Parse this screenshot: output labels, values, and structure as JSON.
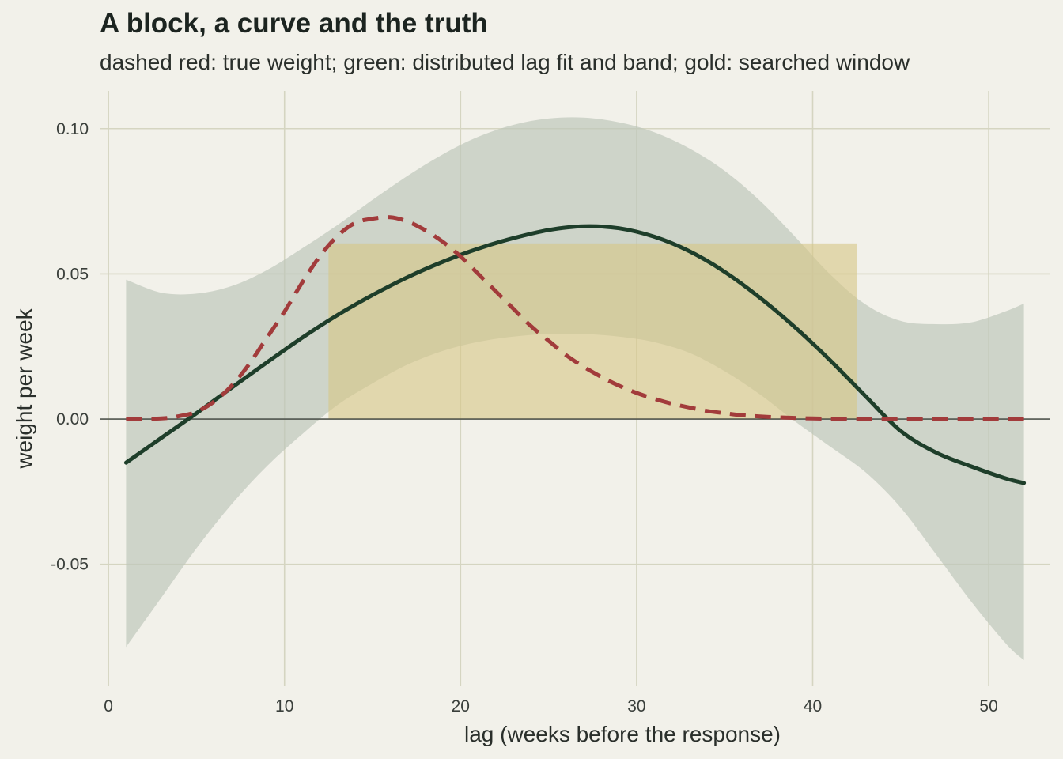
{
  "chart_data": {
    "type": "line",
    "title": "A block, a curve and the truth",
    "subtitle": "dashed red: true weight; green: distributed lag fit and band; gold: searched window",
    "xlabel": "lag (weeks before the response)",
    "ylabel": "weight per week",
    "xlim": [
      -0.5,
      53.5
    ],
    "ylim": [
      -0.092,
      0.113
    ],
    "x_ticks": [
      0,
      10,
      20,
      30,
      40,
      50
    ],
    "x_tick_labels": [
      "0",
      "10",
      "20",
      "30",
      "40",
      "50"
    ],
    "y_ticks": [
      -0.05,
      0.0,
      0.05,
      0.1
    ],
    "y_tick_labels": [
      "-0.05",
      "0.00",
      "0.05",
      "0.10"
    ],
    "grid": true,
    "zero_line": true,
    "colors": {
      "background": "#f2f1ea",
      "grid": "#d5d5c1",
      "band": "#bcc6b9",
      "fit": "#1e3e2a",
      "truth": "#a23b3b",
      "window": "#d7c787",
      "zero_line": "#3b403c"
    },
    "searched_window": {
      "x_start": 12.5,
      "x_end": 42.5,
      "weight": 0.0605
    },
    "series": [
      {
        "role": "true weight",
        "style": "dashed",
        "x": [
          1,
          3,
          4,
          5,
          6,
          7,
          8,
          9,
          10,
          11,
          12,
          13,
          14,
          15,
          16,
          17,
          18,
          19,
          20,
          21,
          22,
          23,
          24,
          25,
          26,
          27,
          28,
          29,
          30,
          31,
          32,
          33,
          34,
          35,
          36,
          37,
          38,
          39,
          40,
          42,
          44,
          46,
          48,
          50,
          52
        ],
        "y": [
          0.0,
          0.0002,
          0.001,
          0.0025,
          0.006,
          0.0115,
          0.019,
          0.028,
          0.037,
          0.047,
          0.056,
          0.063,
          0.0675,
          0.069,
          0.0695,
          0.068,
          0.065,
          0.061,
          0.056,
          0.05,
          0.044,
          0.038,
          0.032,
          0.027,
          0.022,
          0.018,
          0.0145,
          0.0115,
          0.009,
          0.007,
          0.0053,
          0.004,
          0.0028,
          0.002,
          0.0013,
          0.0009,
          0.0006,
          0.0004,
          0.0002,
          0.0001,
          0.0,
          0.0,
          0.0,
          0.0,
          0.0
        ]
      },
      {
        "role": "distributed lag fit",
        "style": "solid",
        "x": [
          1,
          3,
          5,
          7,
          9,
          11,
          13,
          15,
          17,
          19,
          21,
          23,
          25,
          27,
          29,
          31,
          33,
          35,
          37,
          39,
          41,
          43,
          45,
          47,
          49,
          51,
          52
        ],
        "y": [
          -0.015,
          -0.0065,
          0.002,
          0.0108,
          0.0195,
          0.028,
          0.0358,
          0.0427,
          0.0489,
          0.0542,
          0.0587,
          0.0623,
          0.0651,
          0.0664,
          0.0657,
          0.0628,
          0.0578,
          0.0507,
          0.0418,
          0.0316,
          0.0202,
          0.0079,
          -0.0041,
          -0.0115,
          -0.0163,
          -0.0205,
          -0.022
        ]
      },
      {
        "role": "fit band upper",
        "style": "band",
        "x": [
          1,
          3,
          5,
          7,
          9,
          11,
          13,
          15,
          17,
          19,
          21,
          23,
          25,
          27,
          29,
          31,
          33,
          35,
          37,
          39,
          41,
          43,
          45,
          47,
          49,
          51,
          52
        ],
        "y": [
          0.048,
          0.0435,
          0.0432,
          0.0458,
          0.0513,
          0.0588,
          0.0668,
          0.0755,
          0.0838,
          0.0912,
          0.0972,
          0.1013,
          0.1035,
          0.1038,
          0.1022,
          0.0988,
          0.0932,
          0.0855,
          0.0752,
          0.0628,
          0.0498,
          0.0395,
          0.0338,
          0.0327,
          0.0333,
          0.0372,
          0.0398
        ]
      },
      {
        "role": "fit band lower",
        "style": "band",
        "x": [
          1,
          3,
          5,
          7,
          9,
          11,
          13,
          15,
          17,
          19,
          21,
          23,
          25,
          27,
          29,
          31,
          33,
          35,
          37,
          39,
          41,
          43,
          45,
          47,
          49,
          51,
          52
        ],
        "y": [
          -0.0785,
          -0.0615,
          -0.0445,
          -0.0293,
          -0.0162,
          -0.0052,
          0.0048,
          0.0123,
          0.0188,
          0.0235,
          0.0266,
          0.0284,
          0.0293,
          0.0293,
          0.0284,
          0.0265,
          0.0228,
          0.0165,
          0.0085,
          -0.0008,
          -0.0095,
          -0.0183,
          -0.0305,
          -0.0465,
          -0.0628,
          -0.0775,
          -0.083
        ]
      }
    ]
  }
}
